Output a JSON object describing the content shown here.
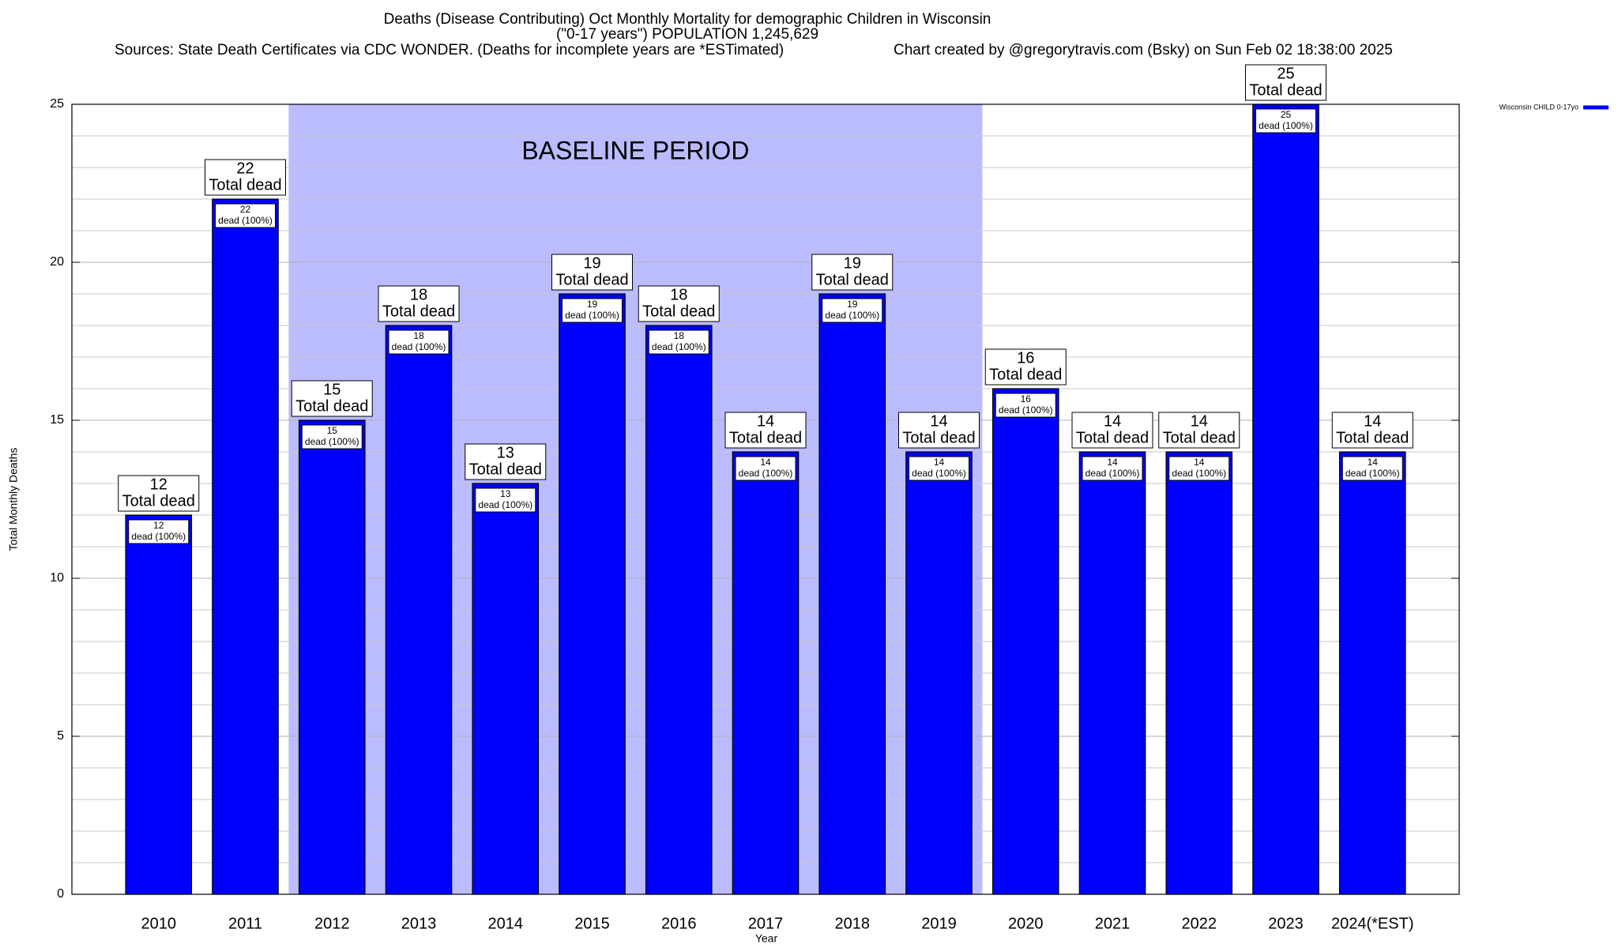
{
  "chart_data": {
    "type": "bar",
    "title": "Deaths (Disease Contributing) Oct Monthly Mortality for demographic Children in Wisconsin",
    "subtitle": "(\"0-17 years\") POPULATION 1,245,629",
    "source": "Sources: State Death Certificates via CDC WONDER. (Deaths for incomplete years are *ESTimated)",
    "credit": "Chart created by @gregorytravis.com (Bsky) on Sun Feb 02 18:38:00 2025",
    "x_label": "Year",
    "y_label": "Total Monthly Deaths",
    "categories": [
      "2010",
      "2011",
      "2012",
      "2013",
      "2014",
      "2015",
      "2016",
      "2017",
      "2018",
      "2019",
      "2020",
      "2021",
      "2022",
      "2023",
      "2024(*EST)"
    ],
    "series": [
      {
        "name": "Wisconsin CHILD 0-17yo",
        "color": "#0000ff",
        "values": [
          12,
          22,
          15,
          18,
          13,
          19,
          18,
          14,
          19,
          14,
          16,
          14,
          14,
          25,
          14
        ]
      }
    ],
    "total_label": "Total dead",
    "segment_label": "dead (100%)",
    "baseline": {
      "label": "BASELINE PERIOD",
      "from": "2012",
      "to": "2019",
      "color": "#bbbbff"
    },
    "ylim": [
      0,
      25
    ],
    "yticks": [
      0,
      5,
      10,
      15,
      20,
      25
    ],
    "yminorticks": [
      1,
      2,
      3,
      4,
      6,
      7,
      8,
      9,
      11,
      12,
      13,
      14,
      16,
      17,
      18,
      19,
      21,
      22,
      23,
      24
    ],
    "grid": true,
    "legend": "top-right"
  }
}
